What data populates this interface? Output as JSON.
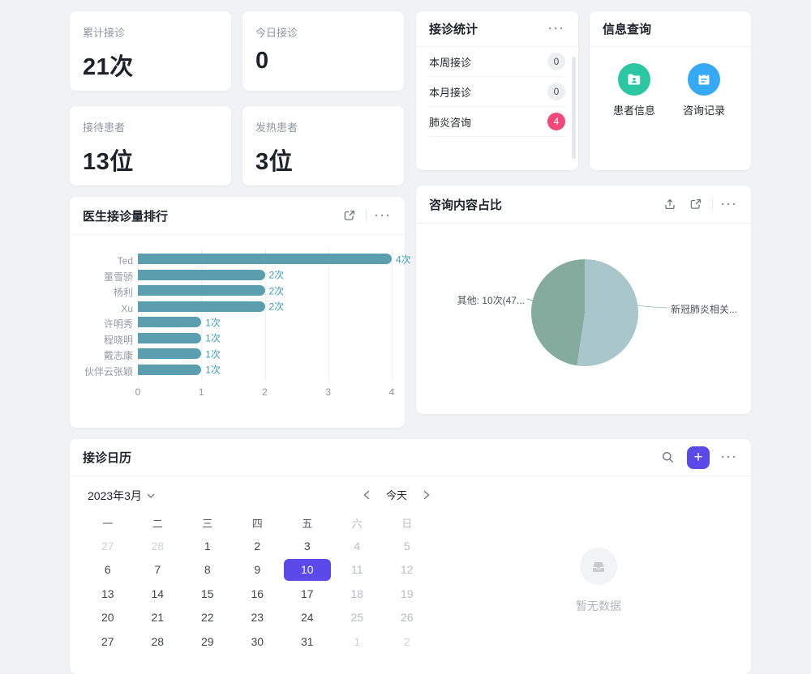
{
  "icons": {
    "ellipsis": "···",
    "plus": "+"
  },
  "stat_cards": [
    {
      "label": "累计接诊",
      "value": "21次"
    },
    {
      "label": "今日接诊",
      "value": "0"
    },
    {
      "label": "接待患者",
      "value": "13位"
    },
    {
      "label": "发热患者",
      "value": "3位"
    }
  ],
  "stats_panel": {
    "title": "接诊统计",
    "rows": [
      {
        "label": "本周接诊",
        "count": "0",
        "badge": "gray"
      },
      {
        "label": "本月接诊",
        "count": "0",
        "badge": "gray"
      },
      {
        "label": "肺炎咨询",
        "count": "4",
        "badge": "red"
      }
    ]
  },
  "info_panel": {
    "title": "信息查询",
    "shortcuts": [
      {
        "label": "患者信息",
        "icon": "patient-info-icon",
        "color": "#2bc7a3"
      },
      {
        "label": "咨询记录",
        "icon": "consult-record-icon",
        "color": "#35a9f3"
      }
    ]
  },
  "chart_data": [
    {
      "type": "bar",
      "orientation": "horizontal",
      "title": "医生接诊量排行",
      "categories": [
        "Ted",
        "董雪骄",
        "杨利",
        "Xu",
        "许明秀",
        "程晓明",
        "戴志康",
        "伙伴云张颖"
      ],
      "values": [
        4,
        2,
        2,
        2,
        1,
        1,
        1,
        1
      ],
      "value_labels": [
        "4次",
        "2次",
        "2次",
        "2次",
        "1次",
        "1次",
        "1次",
        "1次"
      ],
      "xlabel": "",
      "ylabel": "",
      "xlim": [
        0,
        4
      ],
      "xticks": [
        "0",
        "1",
        "2",
        "3",
        "4"
      ],
      "bar_color": "#5b9fae",
      "grid": "vertical-lines-on",
      "legend": "none"
    },
    {
      "type": "pie",
      "title": "咨询内容占比",
      "slices": [
        {
          "name": "新冠肺炎相关...",
          "value_pct": 52.38,
          "color": "#a9c7ca",
          "label_side": "right"
        },
        {
          "name": "其他: 10次(47...",
          "value_pct": 47.62,
          "color": "#84ab9e",
          "label_side": "left"
        }
      ],
      "legend": "none"
    }
  ],
  "calendar_card": {
    "title": "接诊日历",
    "month_label": "2023年3月",
    "today_label": "今天",
    "weekdays": [
      "一",
      "二",
      "三",
      "四",
      "五",
      "六",
      "日"
    ],
    "days": [
      {
        "t": "27",
        "s": "out"
      },
      {
        "t": "28",
        "s": "out"
      },
      {
        "t": "1",
        "s": ""
      },
      {
        "t": "2",
        "s": ""
      },
      {
        "t": "3",
        "s": ""
      },
      {
        "t": "4",
        "s": "wk"
      },
      {
        "t": "5",
        "s": "wk"
      },
      {
        "t": "6",
        "s": ""
      },
      {
        "t": "7",
        "s": ""
      },
      {
        "t": "8",
        "s": ""
      },
      {
        "t": "9",
        "s": ""
      },
      {
        "t": "10",
        "s": "sel"
      },
      {
        "t": "11",
        "s": "wk"
      },
      {
        "t": "12",
        "s": "wk"
      },
      {
        "t": "13",
        "s": ""
      },
      {
        "t": "14",
        "s": ""
      },
      {
        "t": "15",
        "s": ""
      },
      {
        "t": "16",
        "s": ""
      },
      {
        "t": "17",
        "s": ""
      },
      {
        "t": "18",
        "s": "wk"
      },
      {
        "t": "19",
        "s": "wk"
      },
      {
        "t": "20",
        "s": ""
      },
      {
        "t": "21",
        "s": ""
      },
      {
        "t": "22",
        "s": ""
      },
      {
        "t": "23",
        "s": ""
      },
      {
        "t": "24",
        "s": ""
      },
      {
        "t": "25",
        "s": "wk"
      },
      {
        "t": "26",
        "s": "wk"
      },
      {
        "t": "27",
        "s": ""
      },
      {
        "t": "28",
        "s": ""
      },
      {
        "t": "29",
        "s": ""
      },
      {
        "t": "30",
        "s": ""
      },
      {
        "t": "31",
        "s": ""
      },
      {
        "t": "1",
        "s": "out"
      },
      {
        "t": "2",
        "s": "out"
      }
    ],
    "empty_text": "暂无数据"
  },
  "colors": {
    "accent_purple": "#5b49ea",
    "badge_red": "#f2477a",
    "bar_teal": "#5b9fae",
    "pie_sage": "#84ab9e",
    "pie_blue": "#a9c7ca",
    "icon_green": "#2bc7a3",
    "icon_blue": "#35a9f3",
    "background": "#f1f2f4"
  }
}
